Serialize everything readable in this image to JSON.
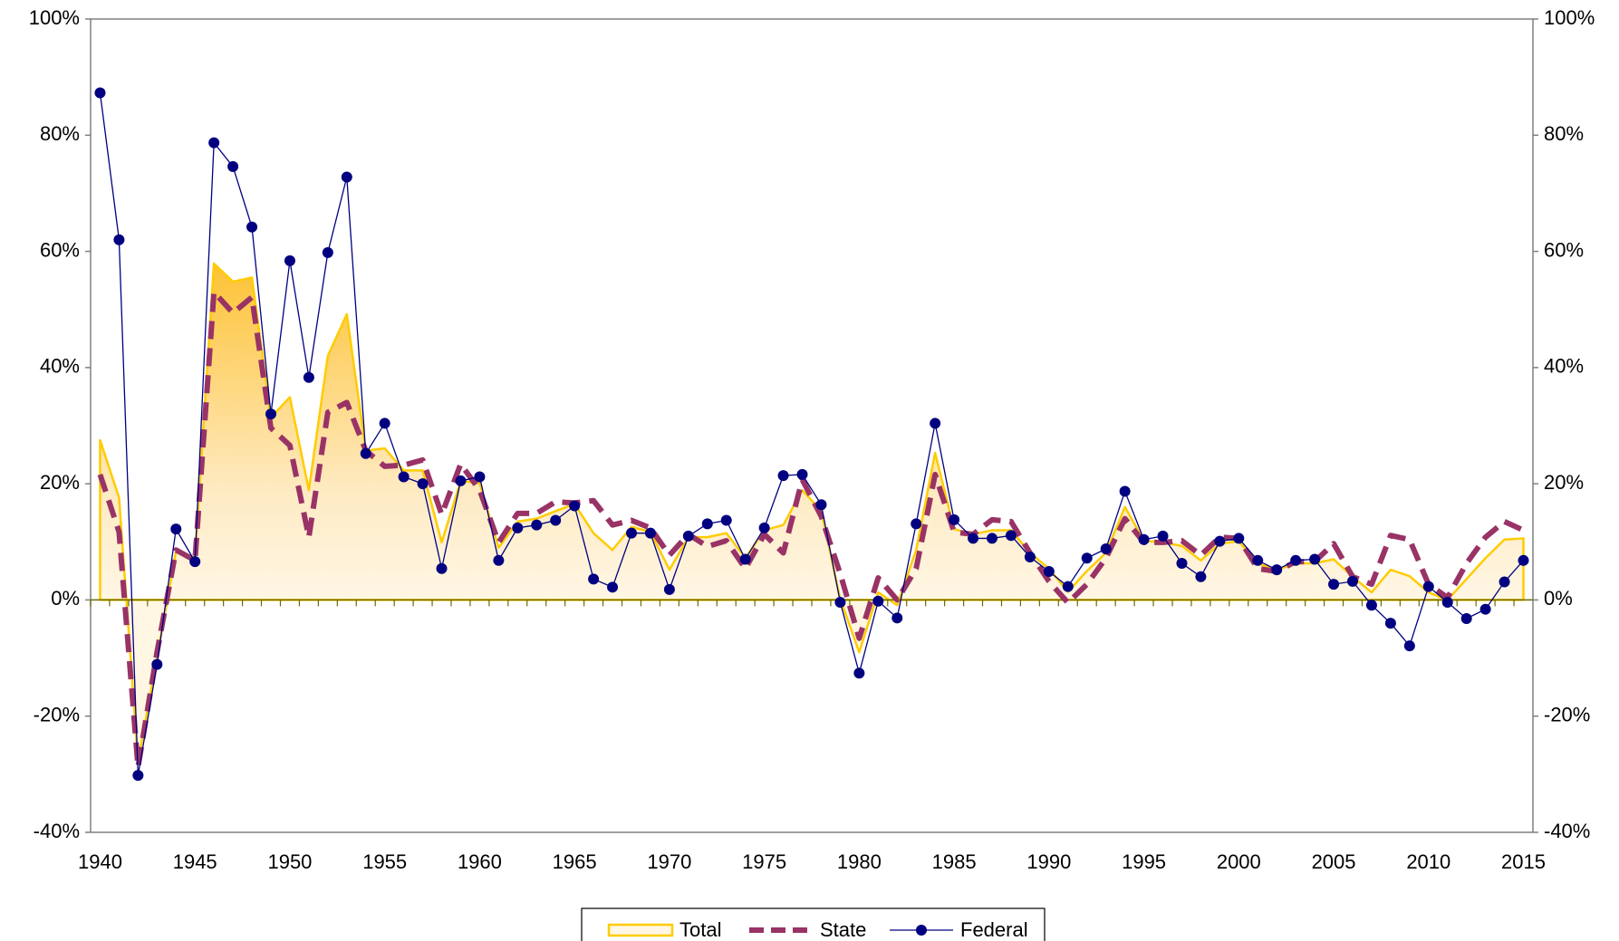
{
  "chart_data": {
    "type": "line",
    "legend": "bottom",
    "x": [
      1940,
      1941,
      1942,
      1943,
      1944,
      1945,
      1946,
      1947,
      1948,
      1949,
      1950,
      1951,
      1952,
      1953,
      1954,
      1955,
      1956,
      1957,
      1958,
      1959,
      1960,
      1961,
      1962,
      1963,
      1964,
      1965,
      1966,
      1967,
      1968,
      1969,
      1970,
      1971,
      1972,
      1973,
      1974,
      1975,
      1976,
      1977,
      1978,
      1979,
      1980,
      1981,
      1982,
      1983,
      1984,
      1985,
      1986,
      1987,
      1988,
      1989,
      1990,
      1991,
      1992,
      1993,
      1994,
      1995,
      1996,
      1997,
      1998,
      1999,
      2000,
      2001,
      2002,
      2003,
      2004,
      2005,
      2006,
      2007,
      2008,
      2009,
      2010,
      2011,
      2012,
      2013,
      2014,
      2015
    ],
    "xlim": [
      1939.5,
      2015.5
    ],
    "xticks": [
      1940,
      1945,
      1950,
      1955,
      1960,
      1965,
      1970,
      1975,
      1980,
      1985,
      1990,
      1995,
      2000,
      2005,
      2010,
      2015
    ],
    "ylim": [
      -40,
      100
    ],
    "yticks": [
      {
        "value": -40,
        "label": "-40%"
      },
      {
        "value": -20,
        "label": "-20%"
      },
      {
        "value": 0,
        "label": "0%"
      },
      {
        "value": 20,
        "label": "20%"
      },
      {
        "value": 40,
        "label": "40%"
      },
      {
        "value": 60,
        "label": "60%"
      },
      {
        "value": 80,
        "label": "80%"
      },
      {
        "value": 100,
        "label": "100%"
      }
    ],
    "y2lim": [
      -40,
      100
    ],
    "y2ticks": [
      {
        "value": -40,
        "label": "-40%"
      },
      {
        "value": -20,
        "label": "-20%"
      },
      {
        "value": 0,
        "label": "0%"
      },
      {
        "value": 20,
        "label": "20%"
      },
      {
        "value": 40,
        "label": "40%"
      },
      {
        "value": 60,
        "label": "60%"
      },
      {
        "value": 80,
        "label": "80%"
      },
      {
        "value": 100,
        "label": "100%"
      }
    ],
    "series": [
      {
        "name": "Total",
        "style": "area",
        "color": "#ffcc00",
        "values": [
          27.5,
          17.6,
          -27.9,
          -9.9,
          8.4,
          7.2,
          57.9,
          54.8,
          55.5,
          31.4,
          34.9,
          18.9,
          42,
          49.2,
          25.7,
          26.1,
          22.3,
          22.3,
          9.9,
          20.5,
          20.1,
          9,
          13.5,
          14,
          15.3,
          16.5,
          11.5,
          8.6,
          12.6,
          11.7,
          5.2,
          10.8,
          10.8,
          11.5,
          7.2,
          12,
          12.9,
          18.9,
          15.3,
          0.2,
          -9,
          1.3,
          -0.9,
          8.6,
          25.3,
          12.2,
          11.3,
          12,
          12,
          8.1,
          5.4,
          1.4,
          5,
          8.1,
          16,
          10.2,
          9.9,
          9.3,
          6.8,
          9.7,
          10.1,
          6.3,
          5.2,
          6.3,
          6.3,
          7,
          4,
          1.3,
          5.2,
          4.1,
          1.3,
          0,
          3.6,
          7.2,
          10.4,
          10.6
        ]
      },
      {
        "name": "State",
        "style": "dashed",
        "color": "#993366",
        "values": [
          21.6,
          11.7,
          -28.8,
          -9,
          8.6,
          6.8,
          53,
          49.4,
          52.1,
          29.6,
          26.6,
          10.8,
          32.3,
          34,
          25.7,
          23,
          23.2,
          24.1,
          14.7,
          23.4,
          18.9,
          9.9,
          14.9,
          14.9,
          16.9,
          16.7,
          17.1,
          12.9,
          13.7,
          12.4,
          7.7,
          11.3,
          9.2,
          10.2,
          5.4,
          11.3,
          8.1,
          20.7,
          14.4,
          4.5,
          -6.6,
          3.8,
          0,
          5.4,
          21.6,
          11.7,
          11.3,
          13.8,
          13.5,
          8.1,
          3.2,
          -0.5,
          2.7,
          7.2,
          14,
          9.9,
          9.9,
          10.2,
          7.7,
          10.8,
          10.6,
          5.4,
          4.9,
          6.6,
          6.6,
          9.7,
          4,
          2.7,
          11.1,
          10.4,
          2.7,
          0.4,
          6.3,
          10.8,
          13.5,
          12
        ]
      },
      {
        "name": "Federal",
        "style": "markers",
        "color": "#000080",
        "values": [
          87.3,
          62,
          -30.2,
          -11.1,
          12.2,
          6.6,
          78.7,
          74.6,
          64.2,
          32,
          58.4,
          38.3,
          59.8,
          72.8,
          25.2,
          30.4,
          21.2,
          20,
          5.4,
          20.5,
          21.2,
          6.8,
          12.4,
          12.9,
          13.7,
          16.2,
          3.6,
          2.2,
          11.5,
          11.5,
          1.8,
          11,
          13.1,
          13.7,
          7,
          12.4,
          21.4,
          21.6,
          16.4,
          -0.4,
          -12.6,
          -0.2,
          -3.1,
          13.1,
          30.4,
          13.8,
          10.6,
          10.6,
          11.1,
          7.4,
          4.9,
          2.3,
          7.2,
          8.8,
          18.7,
          10.4,
          11,
          6.3,
          4,
          10.1,
          10.6,
          6.8,
          5.2,
          6.8,
          7,
          2.7,
          3.2,
          -0.9,
          -4,
          -7.9,
          2.3,
          -0.4,
          -3.2,
          -1.6,
          3.1,
          6.8
        ]
      }
    ]
  }
}
